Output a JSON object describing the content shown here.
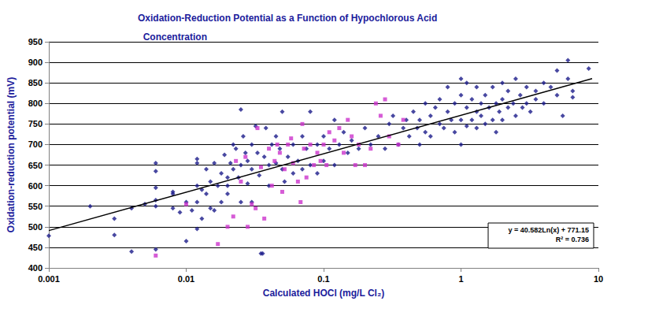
{
  "chart_data": {
    "type": "scatter",
    "title": "Oxidation-Reduction Potential as a Function of Hypochlorous Acid\n  Concentration",
    "x_label": "Calculated HOCl (mg/L Cl₂)",
    "y_label": "Oxidation-reduction potential (mV)",
    "annotations": [
      "y = 40.582Ln(x) + 771.15",
      "R² = 0.736"
    ],
    "log": "x",
    "grid": true,
    "xlim": [
      0.001,
      10
    ],
    "xticks": [
      0.001,
      0.01,
      0.1,
      1,
      10
    ],
    "ylim": [
      400,
      950
    ],
    "yticks": [
      400,
      450,
      500,
      550,
      600,
      650,
      700,
      750,
      800,
      850,
      900,
      950
    ],
    "series": [
      {
        "type": "scatter",
        "color": "#1a1a8a",
        "marker": "diamond",
        "values": [
          [
            0.001,
            478
          ],
          [
            0.002,
            550
          ],
          [
            0.003,
            520
          ],
          [
            0.003,
            480
          ],
          [
            0.004,
            440
          ],
          [
            0.004,
            545
          ],
          [
            0.005,
            555
          ],
          [
            0.006,
            565
          ],
          [
            0.006,
            550
          ],
          [
            0.006,
            595
          ],
          [
            0.006,
            635
          ],
          [
            0.006,
            655
          ],
          [
            0.006,
            445
          ],
          [
            0.008,
            585
          ],
          [
            0.008,
            580
          ],
          [
            0.008,
            545
          ],
          [
            0.009,
            535
          ],
          [
            0.01,
            560
          ],
          [
            0.01,
            465
          ],
          [
            0.011,
            540
          ],
          [
            0.012,
            495
          ],
          [
            0.012,
            560
          ],
          [
            0.012,
            600
          ],
          [
            0.012,
            655
          ],
          [
            0.012,
            665
          ],
          [
            0.013,
            520
          ],
          [
            0.013,
            590
          ],
          [
            0.014,
            580
          ],
          [
            0.014,
            640
          ],
          [
            0.015,
            545
          ],
          [
            0.015,
            610
          ],
          [
            0.016,
            540
          ],
          [
            0.016,
            655
          ],
          [
            0.017,
            600
          ],
          [
            0.018,
            560
          ],
          [
            0.018,
            630
          ],
          [
            0.019,
            675
          ],
          [
            0.02,
            600
          ],
          [
            0.02,
            620
          ],
          [
            0.02,
            580
          ],
          [
            0.021,
            655
          ],
          [
            0.022,
            700
          ],
          [
            0.022,
            640
          ],
          [
            0.023,
            690
          ],
          [
            0.024,
            620
          ],
          [
            0.025,
            785
          ],
          [
            0.025,
            650
          ],
          [
            0.025,
            560
          ],
          [
            0.026,
            720
          ],
          [
            0.027,
            680
          ],
          [
            0.028,
            605
          ],
          [
            0.028,
            660
          ],
          [
            0.03,
            640
          ],
          [
            0.03,
            700
          ],
          [
            0.03,
            560
          ],
          [
            0.032,
            745
          ],
          [
            0.033,
            680
          ],
          [
            0.034,
            625
          ],
          [
            0.035,
            435
          ],
          [
            0.036,
            435
          ],
          [
            0.037,
            670
          ],
          [
            0.038,
            740
          ],
          [
            0.04,
            650
          ],
          [
            0.04,
            600
          ],
          [
            0.042,
            700
          ],
          [
            0.045,
            655
          ],
          [
            0.045,
            720
          ],
          [
            0.048,
            690
          ],
          [
            0.05,
            640
          ],
          [
            0.05,
            780
          ],
          [
            0.052,
            610
          ],
          [
            0.055,
            670
          ],
          [
            0.06,
            700
          ],
          [
            0.06,
            630
          ],
          [
            0.065,
            660
          ],
          [
            0.07,
            720
          ],
          [
            0.07,
            640
          ],
          [
            0.075,
            690
          ],
          [
            0.08,
            650
          ],
          [
            0.08,
            780
          ],
          [
            0.09,
            700
          ],
          [
            0.09,
            630
          ],
          [
            0.1,
            660
          ],
          [
            0.1,
            720
          ],
          [
            0.11,
            690
          ],
          [
            0.12,
            760
          ],
          [
            0.12,
            650
          ],
          [
            0.13,
            700
          ],
          [
            0.14,
            730
          ],
          [
            0.15,
            680
          ],
          [
            0.16,
            710
          ],
          [
            0.18,
            690
          ],
          [
            0.2,
            740
          ],
          [
            0.22,
            700
          ],
          [
            0.25,
            720
          ],
          [
            0.28,
            690
          ],
          [
            0.3,
            750
          ],
          [
            0.32,
            770
          ],
          [
            0.35,
            700
          ],
          [
            0.38,
            740
          ],
          [
            0.4,
            760
          ],
          [
            0.42,
            720
          ],
          [
            0.45,
            780
          ],
          [
            0.48,
            740
          ],
          [
            0.5,
            760
          ],
          [
            0.5,
            700
          ],
          [
            0.55,
            800
          ],
          [
            0.55,
            730
          ],
          [
            0.6,
            770
          ],
          [
            0.6,
            720
          ],
          [
            0.65,
            790
          ],
          [
            0.7,
            750
          ],
          [
            0.7,
            810
          ],
          [
            0.75,
            740
          ],
          [
            0.8,
            780
          ],
          [
            0.8,
            840
          ],
          [
            0.85,
            760
          ],
          [
            0.9,
            730
          ],
          [
            0.9,
            800
          ],
          [
            1,
            760
          ],
          [
            1,
            820
          ],
          [
            1,
            700
          ],
          [
            1,
            860
          ],
          [
            1.1,
            745
          ],
          [
            1.1,
            790
          ],
          [
            1.1,
            850
          ],
          [
            1.2,
            760
          ],
          [
            1.2,
            810
          ],
          [
            1.3,
            740
          ],
          [
            1.3,
            780
          ],
          [
            1.3,
            840
          ],
          [
            1.4,
            770
          ],
          [
            1.4,
            800
          ],
          [
            1.5,
            750
          ],
          [
            1.5,
            820
          ],
          [
            1.6,
            790
          ],
          [
            1.7,
            760
          ],
          [
            1.7,
            840
          ],
          [
            1.8,
            800
          ],
          [
            1.8,
            730
          ],
          [
            1.9,
            780
          ],
          [
            2,
            810
          ],
          [
            2,
            760
          ],
          [
            2,
            850
          ],
          [
            2.2,
            790
          ],
          [
            2.2,
            830
          ],
          [
            2.4,
            800
          ],
          [
            2.5,
            770
          ],
          [
            2.5,
            860
          ],
          [
            2.7,
            820
          ],
          [
            2.8,
            790
          ],
          [
            3,
            840
          ],
          [
            3,
            800
          ],
          [
            3.2,
            780
          ],
          [
            3.5,
            830
          ],
          [
            3.5,
            810
          ],
          [
            4,
            800
          ],
          [
            4,
            850
          ],
          [
            4.5,
            840
          ],
          [
            5,
            880
          ],
          [
            5,
            820
          ],
          [
            5.5,
            770
          ],
          [
            6,
            905
          ],
          [
            6,
            860
          ],
          [
            6.5,
            830
          ],
          [
            6.5,
            815
          ],
          [
            8.5,
            885
          ]
        ]
      },
      {
        "type": "scatter",
        "color": "#cc33cc",
        "marker": "square",
        "values": [
          [
            0.006,
            430
          ],
          [
            0.01,
            555
          ],
          [
            0.017,
            458
          ],
          [
            0.02,
            500
          ],
          [
            0.022,
            525
          ],
          [
            0.023,
            660
          ],
          [
            0.025,
            610
          ],
          [
            0.027,
            670
          ],
          [
            0.028,
            500
          ],
          [
            0.03,
            555
          ],
          [
            0.032,
            545
          ],
          [
            0.033,
            740
          ],
          [
            0.035,
            645
          ],
          [
            0.037,
            520
          ],
          [
            0.04,
            690
          ],
          [
            0.042,
            600
          ],
          [
            0.044,
            660
          ],
          [
            0.046,
            700
          ],
          [
            0.048,
            680
          ],
          [
            0.05,
            585
          ],
          [
            0.052,
            640
          ],
          [
            0.055,
            700
          ],
          [
            0.058,
            715
          ],
          [
            0.06,
            655
          ],
          [
            0.065,
            610
          ],
          [
            0.068,
            560
          ],
          [
            0.07,
            750
          ],
          [
            0.072,
            690
          ],
          [
            0.075,
            620
          ],
          [
            0.08,
            700
          ],
          [
            0.085,
            650
          ],
          [
            0.09,
            680
          ],
          [
            0.095,
            660
          ],
          [
            0.1,
            700
          ],
          [
            0.105,
            650
          ],
          [
            0.11,
            730
          ],
          [
            0.12,
            710
          ],
          [
            0.13,
            740
          ],
          [
            0.14,
            680
          ],
          [
            0.15,
            760
          ],
          [
            0.16,
            720
          ],
          [
            0.17,
            650
          ],
          [
            0.18,
            700
          ],
          [
            0.2,
            650
          ],
          [
            0.22,
            690
          ],
          [
            0.24,
            800
          ],
          [
            0.26,
            770
          ],
          [
            0.28,
            810
          ],
          [
            0.3,
            720
          ],
          [
            0.35,
            700
          ],
          [
            0.38,
            760
          ]
        ]
      },
      {
        "type": "line",
        "color": "#000000",
        "line_style": "solid",
        "values": [
          [
            0.001,
            490.8
          ],
          [
            9,
            860.3
          ]
        ]
      }
    ]
  }
}
